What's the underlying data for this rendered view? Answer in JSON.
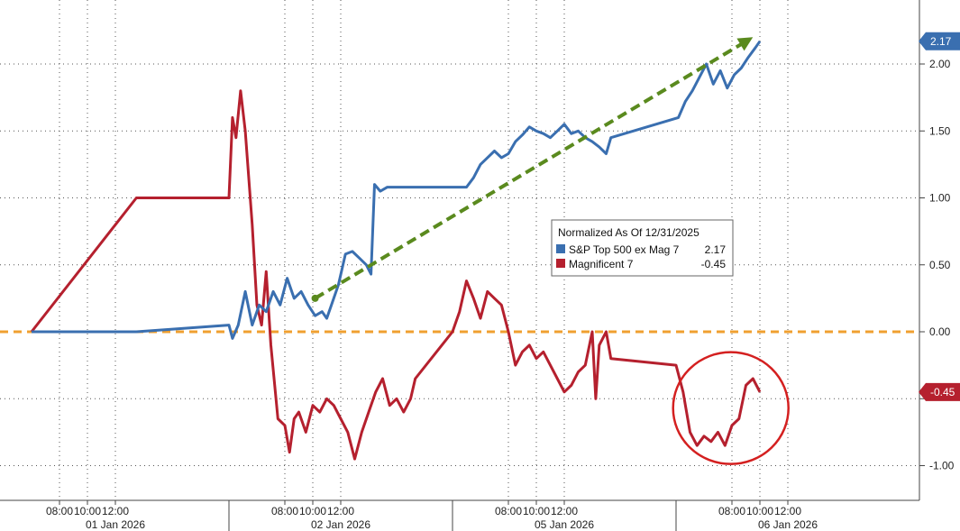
{
  "chart_data": {
    "type": "line",
    "title": "",
    "xlabel": "",
    "ylabel": "",
    "ylim": [
      -1.25,
      2.25
    ],
    "grid": true,
    "y_ticks": [
      2.0,
      1.5,
      1.0,
      0.5,
      0.0,
      -1.0
    ],
    "y_tick_labels": [
      "2.00",
      "1.50",
      "1.00",
      "0.50",
      "0.00",
      "-1.00"
    ],
    "x_sessions": [
      {
        "date": "01 Jan 2026",
        "times": [
          "08:00",
          "10:00",
          "12:00"
        ]
      },
      {
        "date": "02 Jan 2026",
        "times": [
          "08:00",
          "10:00",
          "12:00"
        ]
      },
      {
        "date": "05 Jan 2026",
        "times": [
          "08:00",
          "10:00",
          "12:00"
        ]
      },
      {
        "date": "06 Jan 2026",
        "times": [
          "08:00",
          "10:00",
          "12:00"
        ]
      }
    ],
    "legend": {
      "title": "Normalized As Of 12/31/2025",
      "placement": "center-right",
      "entries": [
        {
          "label": "S&P Top 500 ex Mag 7",
          "value": "2.17",
          "color": "#3a6fb0"
        },
        {
          "label": "Magnificent 7",
          "value": "-0.45",
          "color": "#b5202e"
        }
      ]
    },
    "last_value_tags": [
      {
        "text": "2.17",
        "value": 2.17,
        "color": "#3a6fb0"
      },
      {
        "text": "-0.45",
        "value": -0.45,
        "color": "#b5202e"
      }
    ],
    "zero_line_color": "#f0a030",
    "trend_arrow_color": "#5a8a1e",
    "circle_color": "#d42020",
    "series": [
      {
        "name": "S&P Top 500 ex Mag 7",
        "color": "#3a6fb0",
        "points": [
          [
            "01 Jan 06:00",
            0
          ],
          [
            "01 Jan 13:30",
            0
          ],
          [
            "02 Jan 04:00",
            0.05
          ],
          [
            "02 Jan 04:15",
            -0.05
          ],
          [
            "02 Jan 04:40",
            0.05
          ],
          [
            "02 Jan 05:10",
            0.3
          ],
          [
            "02 Jan 05:40",
            0.05
          ],
          [
            "02 Jan 06:10",
            0.2
          ],
          [
            "02 Jan 06:40",
            0.15
          ],
          [
            "02 Jan 07:10",
            0.3
          ],
          [
            "02 Jan 07:40",
            0.2
          ],
          [
            "02 Jan 08:10",
            0.4
          ],
          [
            "02 Jan 08:40",
            0.25
          ],
          [
            "02 Jan 09:10",
            0.3
          ],
          [
            "02 Jan 09:40",
            0.2
          ],
          [
            "02 Jan 10:10",
            0.12
          ],
          [
            "02 Jan 10:40",
            0.15
          ],
          [
            "02 Jan 11:00",
            0.1
          ],
          [
            "02 Jan 11:20",
            0.2
          ],
          [
            "02 Jan 11:50",
            0.35
          ],
          [
            "02 Jan 12:20",
            0.58
          ],
          [
            "02 Jan 12:50",
            0.6
          ],
          [
            "02 Jan 13:20",
            0.55
          ],
          [
            "02 Jan 13:50",
            0.5
          ],
          [
            "02 Jan 14:10",
            0.43
          ],
          [
            "02 Jan 14:25",
            1.1
          ],
          [
            "02 Jan 14:50",
            1.05
          ],
          [
            "02 Jan 15:20",
            1.08
          ],
          [
            "05 Jan 05:00",
            1.08
          ],
          [
            "05 Jan 05:30",
            1.15
          ],
          [
            "05 Jan 06:00",
            1.25
          ],
          [
            "05 Jan 06:30",
            1.3
          ],
          [
            "05 Jan 07:00",
            1.35
          ],
          [
            "05 Jan 07:30",
            1.3
          ],
          [
            "05 Jan 08:00",
            1.33
          ],
          [
            "05 Jan 08:30",
            1.42
          ],
          [
            "05 Jan 09:00",
            1.47
          ],
          [
            "05 Jan 09:30",
            1.53
          ],
          [
            "05 Jan 10:00",
            1.5
          ],
          [
            "05 Jan 10:30",
            1.48
          ],
          [
            "05 Jan 11:00",
            1.45
          ],
          [
            "05 Jan 11:30",
            1.5
          ],
          [
            "05 Jan 12:00",
            1.55
          ],
          [
            "05 Jan 12:30",
            1.48
          ],
          [
            "05 Jan 13:00",
            1.5
          ],
          [
            "05 Jan 13:30",
            1.45
          ],
          [
            "05 Jan 14:00",
            1.42
          ],
          [
            "05 Jan 14:30",
            1.38
          ],
          [
            "05 Jan 15:00",
            1.33
          ],
          [
            "05 Jan 15:20",
            1.45
          ],
          [
            "06 Jan 04:10",
            1.6
          ],
          [
            "06 Jan 04:40",
            1.72
          ],
          [
            "06 Jan 05:10",
            1.8
          ],
          [
            "06 Jan 05:40",
            1.9
          ],
          [
            "06 Jan 06:10",
            2.0
          ],
          [
            "06 Jan 06:40",
            1.85
          ],
          [
            "06 Jan 07:10",
            1.95
          ],
          [
            "06 Jan 07:40",
            1.82
          ],
          [
            "06 Jan 08:10",
            1.92
          ],
          [
            "06 Jan 08:40",
            1.97
          ],
          [
            "06 Jan 09:10",
            2.05
          ],
          [
            "06 Jan 09:40",
            2.12
          ],
          [
            "06 Jan 10:00",
            2.17
          ]
        ]
      },
      {
        "name": "Magnificent 7",
        "color": "#b5202e",
        "points": [
          [
            "01 Jan 06:00",
            0
          ],
          [
            "01 Jan 13:30",
            1.0
          ],
          [
            "02 Jan 04:00",
            1.0
          ],
          [
            "02 Jan 04:15",
            1.6
          ],
          [
            "02 Jan 04:30",
            1.45
          ],
          [
            "02 Jan 04:50",
            1.8
          ],
          [
            "02 Jan 05:10",
            1.5
          ],
          [
            "02 Jan 05:40",
            0.8
          ],
          [
            "02 Jan 06:00",
            0.2
          ],
          [
            "02 Jan 06:20",
            0.05
          ],
          [
            "02 Jan 06:40",
            0.45
          ],
          [
            "02 Jan 07:00",
            -0.1
          ],
          [
            "02 Jan 07:30",
            -0.65
          ],
          [
            "02 Jan 08:00",
            -0.7
          ],
          [
            "02 Jan 08:20",
            -0.9
          ],
          [
            "02 Jan 08:40",
            -0.65
          ],
          [
            "02 Jan 09:00",
            -0.6
          ],
          [
            "02 Jan 09:30",
            -0.75
          ],
          [
            "02 Jan 10:00",
            -0.55
          ],
          [
            "02 Jan 10:30",
            -0.6
          ],
          [
            "02 Jan 11:00",
            -0.5
          ],
          [
            "02 Jan 11:30",
            -0.55
          ],
          [
            "02 Jan 12:00",
            -0.65
          ],
          [
            "02 Jan 12:30",
            -0.75
          ],
          [
            "02 Jan 13:00",
            -0.95
          ],
          [
            "02 Jan 13:30",
            -0.75
          ],
          [
            "02 Jan 14:00",
            -0.6
          ],
          [
            "02 Jan 14:30",
            -0.45
          ],
          [
            "02 Jan 15:00",
            -0.35
          ],
          [
            "02 Jan 15:30",
            -0.55
          ],
          [
            "02 Jan 16:00",
            -0.5
          ],
          [
            "02 Jan 16:30",
            -0.6
          ],
          [
            "02 Jan 17:00",
            -0.5
          ],
          [
            "02 Jan 17:20",
            -0.35
          ],
          [
            "05 Jan 04:00",
            0.0
          ],
          [
            "05 Jan 04:30",
            0.15
          ],
          [
            "05 Jan 05:00",
            0.38
          ],
          [
            "05 Jan 05:30",
            0.25
          ],
          [
            "05 Jan 06:00",
            0.1
          ],
          [
            "05 Jan 06:30",
            0.3
          ],
          [
            "05 Jan 07:00",
            0.25
          ],
          [
            "05 Jan 07:30",
            0.2
          ],
          [
            "05 Jan 08:00",
            0.0
          ],
          [
            "05 Jan 08:30",
            -0.25
          ],
          [
            "05 Jan 09:00",
            -0.15
          ],
          [
            "05 Jan 09:30",
            -0.1
          ],
          [
            "05 Jan 10:00",
            -0.2
          ],
          [
            "05 Jan 10:30",
            -0.15
          ],
          [
            "05 Jan 11:00",
            -0.25
          ],
          [
            "05 Jan 11:30",
            -0.35
          ],
          [
            "05 Jan 12:00",
            -0.45
          ],
          [
            "05 Jan 12:30",
            -0.4
          ],
          [
            "05 Jan 13:00",
            -0.3
          ],
          [
            "05 Jan 13:30",
            -0.25
          ],
          [
            "05 Jan 14:00",
            0.0
          ],
          [
            "05 Jan 14:15",
            -0.5
          ],
          [
            "05 Jan 14:30",
            -0.1
          ],
          [
            "05 Jan 15:00",
            0.0
          ],
          [
            "05 Jan 15:20",
            -0.2
          ],
          [
            "06 Jan 04:00",
            -0.25
          ],
          [
            "06 Jan 04:30",
            -0.45
          ],
          [
            "06 Jan 05:00",
            -0.75
          ],
          [
            "06 Jan 05:30",
            -0.85
          ],
          [
            "06 Jan 06:00",
            -0.78
          ],
          [
            "06 Jan 06:30",
            -0.82
          ],
          [
            "06 Jan 07:00",
            -0.75
          ],
          [
            "06 Jan 07:30",
            -0.85
          ],
          [
            "06 Jan 08:00",
            -0.7
          ],
          [
            "06 Jan 08:30",
            -0.65
          ],
          [
            "06 Jan 09:00",
            -0.4
          ],
          [
            "06 Jan 09:30",
            -0.35
          ],
          [
            "06 Jan 10:00",
            -0.45
          ]
        ]
      }
    ],
    "annotations": [
      {
        "type": "trend-arrow",
        "from": [
          "02 Jan 10:10",
          0.25
        ],
        "to": [
          "06 Jan 09:30",
          2.2
        ]
      },
      {
        "type": "circle",
        "around": "Magnificent 7 lows on 06 Jan 2026"
      }
    ]
  }
}
